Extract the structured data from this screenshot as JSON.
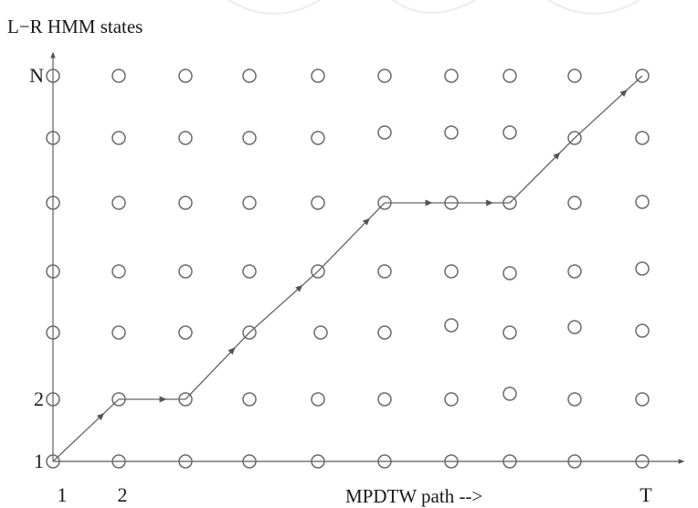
{
  "diagram": {
    "y_axis_title": "L−R HMM states",
    "x_axis_title": "MPDTW path -->",
    "y_tick_labels": [
      {
        "text": "1",
        "row": 0
      },
      {
        "text": "2",
        "row": 1
      },
      {
        "text": "N",
        "row": 6
      }
    ],
    "x_tick_labels": [
      {
        "text": "1",
        "col": 0
      },
      {
        "text": "2",
        "col": 1
      },
      {
        "text": "T",
        "col": 9
      }
    ],
    "grid": {
      "columns": 10,
      "rows": 7
    },
    "path": [
      [
        0,
        0
      ],
      [
        1,
        1
      ],
      [
        2,
        1
      ],
      [
        3,
        2
      ],
      [
        4,
        3
      ],
      [
        5,
        4
      ],
      [
        6,
        4
      ],
      [
        7,
        4
      ],
      [
        8,
        5
      ],
      [
        9,
        6
      ]
    ],
    "colors": {
      "node": "#6a6a6a",
      "axis": "#777777",
      "path": "#666666",
      "text": "#1a1a1a"
    }
  }
}
